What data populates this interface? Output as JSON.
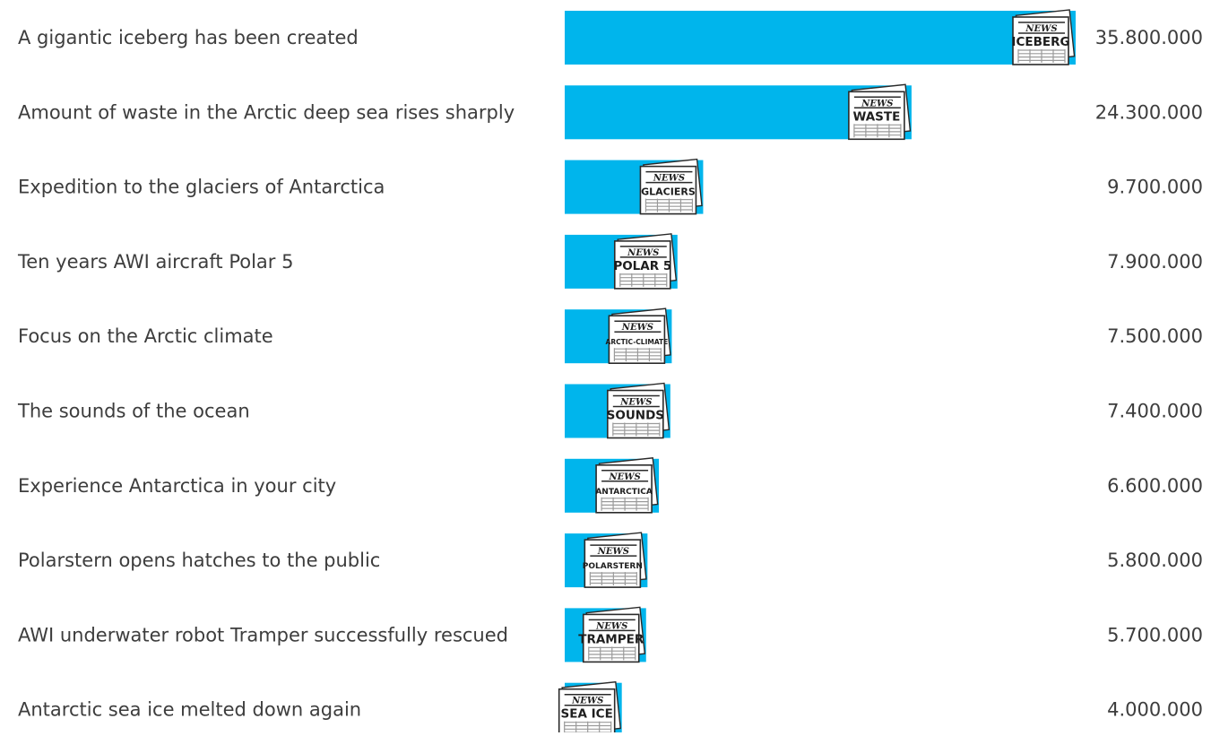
{
  "chart_data": {
    "type": "bar",
    "orientation": "horizontal",
    "title": "",
    "xlabel": "",
    "ylabel": "",
    "bar_color": "#00b5ec",
    "text_color": "#3d3d3d",
    "xlim": [
      0,
      35800000
    ],
    "grid": false,
    "legend": "none",
    "categories": [
      "A gigantic iceberg has been created",
      "Amount of waste in the Arctic deep sea rises sharply",
      "Expedition to the glaciers of Antarctica",
      "Ten years AWI aircraft Polar 5",
      "Focus on the Arctic climate",
      "The sounds of the ocean",
      "Experience Antarctica in your city",
      "Polarstern opens hatches to the public",
      "AWI underwater robot Tramper successfully rescued",
      "Antarctic sea ice melted down again"
    ],
    "values": [
      35800000,
      24300000,
      9700000,
      7900000,
      7500000,
      7400000,
      6600000,
      5800000,
      5700000,
      4000000
    ],
    "value_labels": [
      "35.800.000",
      "24.300.000",
      "9.700.000",
      "7.900.000",
      "7.500.000",
      "7.400.000",
      "6.600.000",
      "5.800.000",
      "5.700.000",
      "4.000.000"
    ],
    "icon": "newspaper-icon",
    "icon_header": "NEWS",
    "icon_words": [
      "ICEBERG",
      "WASTE",
      "GLACIERS",
      "POLAR 5",
      "ARCTIC-CLIMATE",
      "SOUNDS",
      "ANTARCTICA",
      "POLARSTERN",
      "TRAMPER",
      "SEA ICE"
    ]
  }
}
